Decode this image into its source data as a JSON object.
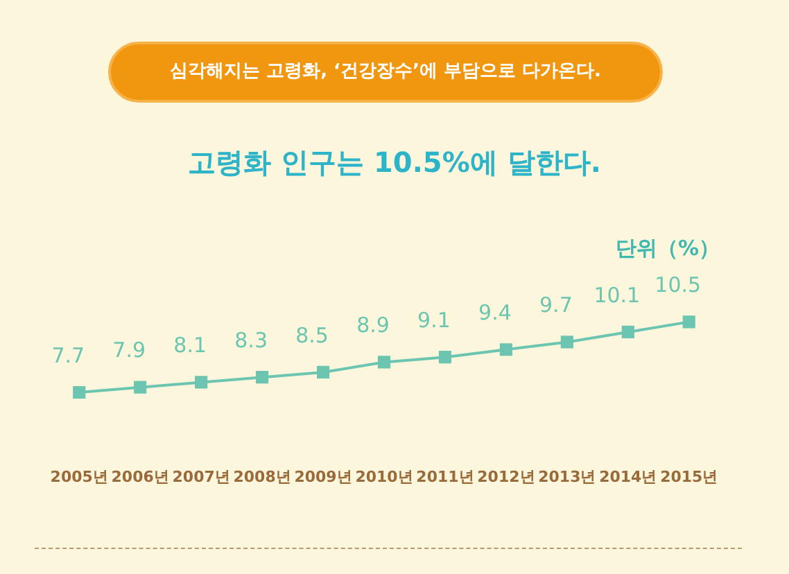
{
  "chart_data": {
    "type": "line",
    "title": "심각해지는 고령화, ‘건강장수’에 부담으로 다가온다.",
    "subtitle": "고령화 인구는 10.5%에 달한다.",
    "ylabel": "단위（%）",
    "categories": [
      "2005년",
      "2006년",
      "2007년",
      "2008년",
      "2009년",
      "2010년",
      "2011년",
      "2012년",
      "2013년",
      "2014년",
      "2015년"
    ],
    "series": [
      {
        "color": "#6cc5b0",
        "values": [
          7.7,
          7.9,
          8.1,
          8.3,
          8.5,
          8.9,
          9.1,
          9.4,
          9.7,
          10.1,
          10.5
        ]
      }
    ],
    "data_labels": true,
    "marker": "square",
    "grid": false,
    "legend": false,
    "tick_labels": "x"
  }
}
